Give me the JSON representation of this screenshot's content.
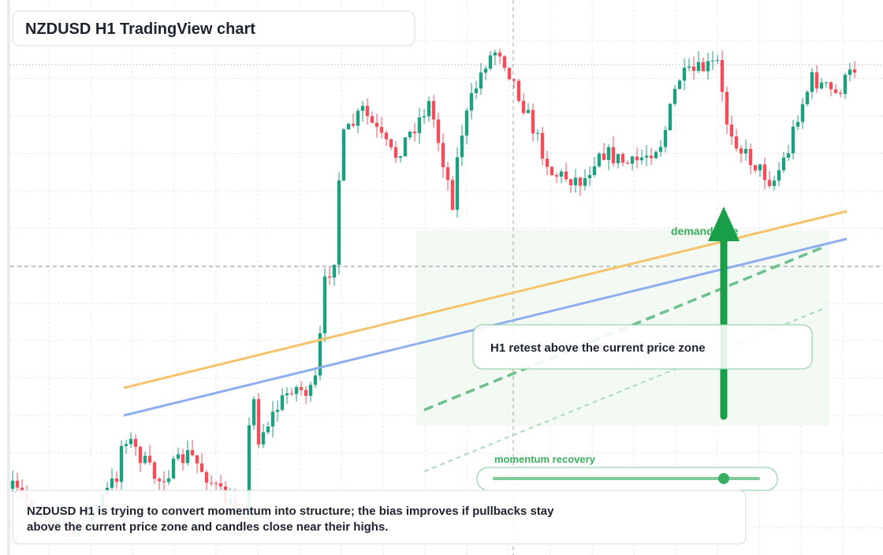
{
  "header": {
    "title": "NZDUSD H1 TradingView chart"
  },
  "annotations": {
    "zone_label": "demand side",
    "callout": "H1 retest above the current price zone",
    "slider_label": "momentum recovery"
  },
  "note": {
    "lines": [
      "NZDUSD H1 is trying to convert momentum into structure; the bias improves if pullbacks stay",
      "above the current price zone and candles close near their highs."
    ]
  }
}
